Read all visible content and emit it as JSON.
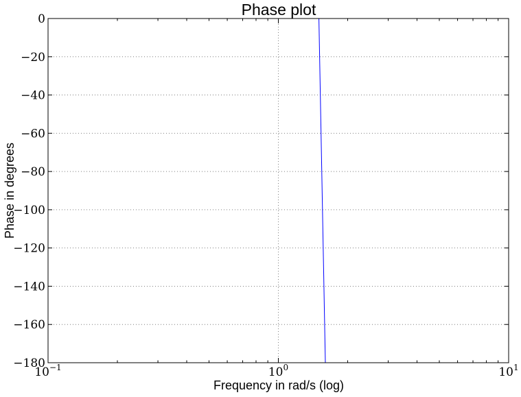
{
  "chart_data": {
    "type": "line",
    "title": "Phase plot",
    "xlabel": "Frequency in rad/s (log)",
    "ylabel": "Phase in degrees",
    "xscale": "log",
    "xlim": [
      0.1,
      10
    ],
    "ylim": [
      -180,
      0
    ],
    "grid": true,
    "x_ticks": [
      {
        "base": "10",
        "exp": "−1",
        "value": 0.1
      },
      {
        "base": "10",
        "exp": "0",
        "value": 1
      },
      {
        "base": "10",
        "exp": "1",
        "value": 10
      }
    ],
    "y_ticks": [
      "0",
      "−20",
      "−40",
      "−60",
      "−80",
      "−100",
      "−120",
      "−140",
      "−160",
      "−180"
    ],
    "y_tick_values": [
      0,
      -20,
      -40,
      -60,
      -80,
      -100,
      -120,
      -140,
      -160,
      -180
    ],
    "series": [
      {
        "color": "#0000ff",
        "x": [
          1.5,
          1.6,
          10
        ],
        "y": [
          0,
          -180,
          -180
        ]
      }
    ]
  }
}
